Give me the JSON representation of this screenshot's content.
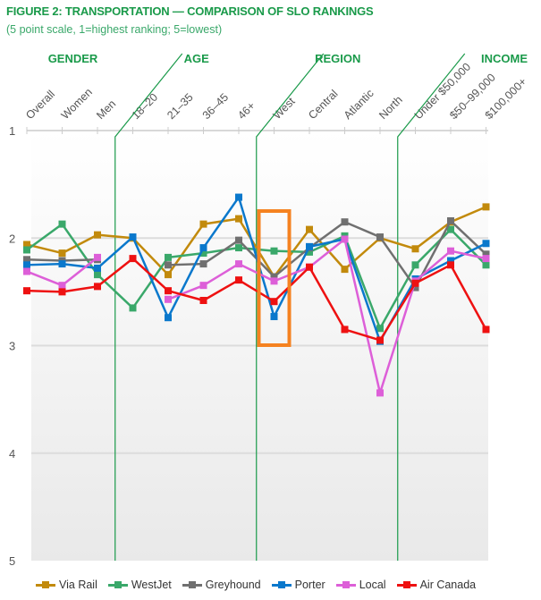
{
  "title": "FIGURE 2: TRANSPORTATION — COMPARISON OF SLO RANKINGS",
  "subtitle": "(5 point scale, 1=highest ranking; 5=lowest)",
  "chart_data": {
    "type": "line",
    "title": "FIGURE 2: TRANSPORTATION — COMPARISON OF SLO RANKINGS",
    "subtitle": "(5 point scale, 1=highest ranking; 5=lowest)",
    "groups": [
      {
        "label": "GENDER",
        "categories": [
          "Overall",
          "Women",
          "Men"
        ]
      },
      {
        "label": "AGE",
        "categories": [
          "18–20",
          "21–35",
          "36–45",
          "46+"
        ]
      },
      {
        "label": "REGION",
        "categories": [
          "West",
          "Central",
          "Atlantic",
          "North"
        ]
      },
      {
        "label": "INCOME",
        "categories": [
          "Under $50,000",
          "$50–99,000",
          "$100,000+"
        ]
      }
    ],
    "categories": [
      "Overall",
      "Women",
      "Men",
      "18–20",
      "21–35",
      "36–45",
      "46+",
      "West",
      "Central",
      "Atlantic",
      "North",
      "Under $50,000",
      "$50–99,000",
      "$100,000+"
    ],
    "y_ticks": [
      "1",
      "2",
      "3",
      "4",
      "5"
    ],
    "ylim": [
      1,
      5
    ],
    "y_inverted": true,
    "grid": true,
    "legend_position": "bottom",
    "highlight": {
      "category": "West",
      "color": "#f58220"
    },
    "series": [
      {
        "name": "Via Rail",
        "color": "#c28a0c",
        "values": [
          2.06,
          2.14,
          1.97,
          2.0,
          2.34,
          1.87,
          1.82,
          2.36,
          1.92,
          2.29,
          2.0,
          2.1,
          1.85,
          1.71
        ]
      },
      {
        "name": "WestJet",
        "color": "#3aa86a",
        "values": [
          2.11,
          1.87,
          2.34,
          2.65,
          2.18,
          2.14,
          2.09,
          2.12,
          2.13,
          1.98,
          2.84,
          2.25,
          1.92,
          2.25
        ]
      },
      {
        "name": "Greyhound",
        "color": "#707070",
        "values": [
          2.2,
          2.21,
          2.2,
          null,
          2.25,
          2.24,
          2.02,
          2.36,
          2.09,
          1.85,
          1.99,
          2.46,
          1.84,
          2.15
        ]
      },
      {
        "name": "Porter",
        "color": "#0a78cc",
        "values": [
          2.25,
          2.24,
          2.28,
          1.99,
          2.74,
          2.09,
          1.62,
          2.73,
          2.08,
          2.01,
          2.96,
          2.38,
          2.21,
          2.05
        ]
      },
      {
        "name": "Local",
        "color": "#dd5fd8",
        "values": [
          2.31,
          2.44,
          2.18,
          null,
          2.57,
          2.44,
          2.24,
          2.4,
          2.27,
          2.01,
          3.44,
          2.4,
          2.12,
          2.19
        ]
      },
      {
        "name": "Air Canada",
        "color": "#ee1111",
        "values": [
          2.49,
          2.5,
          2.45,
          2.19,
          2.49,
          2.58,
          2.39,
          2.59,
          2.27,
          2.85,
          2.95,
          2.42,
          2.25,
          2.85
        ]
      }
    ]
  }
}
